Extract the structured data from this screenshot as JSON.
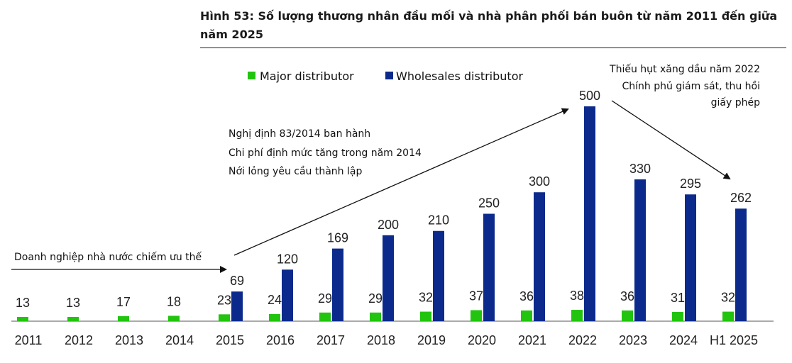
{
  "title": "Hình 53: Số lượng thương nhân đầu mối và nhà phân phối bán buôn từ năm 2011 đến giữa năm 2025",
  "chart_data": {
    "type": "bar",
    "categories": [
      "2011",
      "2012",
      "2013",
      "2014",
      "2015",
      "2016",
      "2017",
      "2018",
      "2019",
      "2020",
      "2021",
      "2022",
      "2023",
      "2024",
      "H1 2025"
    ],
    "series": [
      {
        "name": "Major distributor",
        "color": "#22c40f",
        "values": [
          13,
          13,
          17,
          18,
          23,
          24,
          29,
          29,
          32,
          37,
          36,
          38,
          36,
          31,
          32
        ]
      },
      {
        "name": "Wholesales distributor",
        "color": "#0b2a8c",
        "values": [
          null,
          null,
          null,
          null,
          69,
          120,
          169,
          200,
          210,
          250,
          300,
          500,
          330,
          295,
          262
        ]
      }
    ],
    "legend": {
      "placement": "top-left"
    },
    "grid": false,
    "annotations": {
      "state_dominance": "Doanh nghiệp nhà nước chiếm ưu thế",
      "decree_lines": [
        "Nghị định 83/2014 ban hành",
        "Chi phí định mức tăng trong năm 2014",
        "Nới lỏng yêu cầu thành lập"
      ],
      "shortage_lines": [
        "Thiếu hụt xăng dầu năm 2022",
        "Chính phủ giám sát, thu hồi",
        "giấy phép"
      ]
    }
  }
}
